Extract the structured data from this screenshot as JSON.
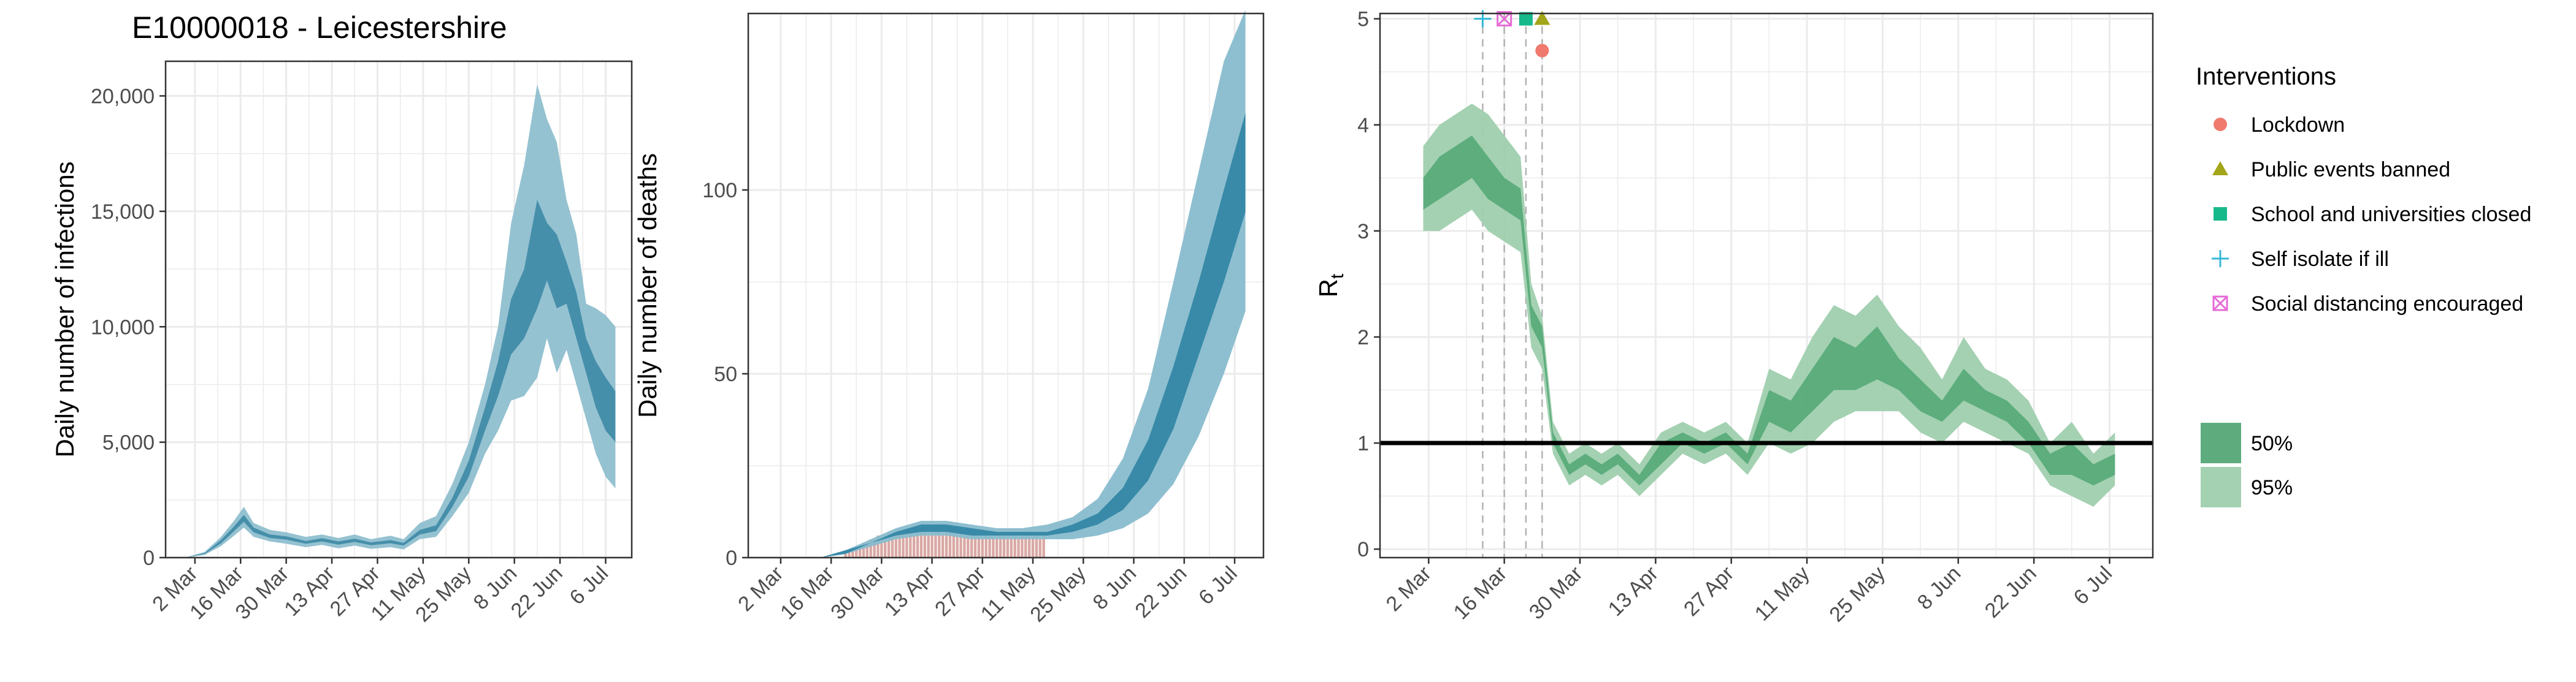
{
  "figure": {
    "title": "E10000018 - Leicestershire"
  },
  "colors": {
    "infection_outer": "#8fbfcf",
    "infection_inner": "#3d8aa6",
    "deaths_outer": "#88bccd",
    "deaths_inner": "#2f84a3",
    "deaths_bars": "#d9a8a4",
    "rt_outer": "#9fcfae",
    "rt_inner": "#55a877",
    "grid": "#ebebeb",
    "lockdown": "#f07a6e",
    "public_events": "#a3a51a",
    "school": "#16b98a",
    "self_isolate": "#34b8d8",
    "social_distancing": "#e66bd6"
  },
  "chart_data": [
    {
      "type": "area",
      "title": "E10000018 - Leicestershire",
      "xlabel": "",
      "ylabel": "Daily number of infections",
      "x_tick_labels": [
        "2 Mar",
        "16 Mar",
        "30 Mar",
        "13 Apr",
        "27 Apr",
        "11 May",
        "25 May",
        "8 Jun",
        "22 Jun",
        "6 Jul"
      ],
      "y_tick_labels": [
        "0",
        "5,000",
        "10,000",
        "15,000",
        "20,000"
      ],
      "y_ticks": [
        0,
        5000,
        10000,
        15000,
        20000
      ],
      "xlim": [
        "2020-02-22",
        "2020-07-14"
      ],
      "ylim": [
        0,
        21500
      ],
      "grid": true,
      "series": [
        {
          "band": "95%",
          "x": [
            "2020-02-28",
            "2020-03-05",
            "2020-03-10",
            "2020-03-14",
            "2020-03-17",
            "2020-03-20",
            "2020-03-25",
            "2020-03-30",
            "2020-04-05",
            "2020-04-10",
            "2020-04-15",
            "2020-04-20",
            "2020-04-25",
            "2020-05-01",
            "2020-05-05",
            "2020-05-10",
            "2020-05-15",
            "2020-05-20",
            "2020-05-25",
            "2020-05-30",
            "2020-06-03",
            "2020-06-07",
            "2020-06-11",
            "2020-06-15",
            "2020-06-18",
            "2020-06-21",
            "2020-06-24",
            "2020-06-27",
            "2020-06-30",
            "2020-07-03",
            "2020-07-06",
            "2020-07-09"
          ],
          "lower": [
            0,
            120,
            500,
            950,
            1300,
            900,
            700,
            600,
            450,
            550,
            400,
            520,
            380,
            450,
            350,
            800,
            900,
            1800,
            2800,
            4500,
            5500,
            6800,
            7000,
            7800,
            9500,
            8000,
            9000,
            7500,
            6000,
            4500,
            3500,
            3000
          ],
          "upper": [
            0,
            250,
            900,
            1600,
            2200,
            1500,
            1200,
            1100,
            900,
            1000,
            850,
            1000,
            800,
            950,
            800,
            1500,
            1800,
            3200,
            5000,
            7500,
            10000,
            14500,
            17000,
            20500,
            19000,
            18000,
            15500,
            14000,
            11000,
            10800,
            10500,
            10000
          ]
        },
        {
          "band": "50%",
          "x": [
            "2020-02-28",
            "2020-03-05",
            "2020-03-10",
            "2020-03-14",
            "2020-03-17",
            "2020-03-20",
            "2020-03-25",
            "2020-03-30",
            "2020-04-05",
            "2020-04-10",
            "2020-04-15",
            "2020-04-20",
            "2020-04-25",
            "2020-05-01",
            "2020-05-05",
            "2020-05-10",
            "2020-05-15",
            "2020-05-20",
            "2020-05-25",
            "2020-05-30",
            "2020-06-03",
            "2020-06-07",
            "2020-06-11",
            "2020-06-15",
            "2020-06-18",
            "2020-06-21",
            "2020-06-24",
            "2020-06-27",
            "2020-06-30",
            "2020-07-03",
            "2020-07-06",
            "2020-07-09"
          ],
          "lower": [
            0,
            160,
            620,
            1150,
            1550,
            1100,
            850,
            780,
            600,
            700,
            560,
            680,
            540,
            620,
            520,
            1000,
            1150,
            2200,
            3500,
            5500,
            7000,
            8800,
            9500,
            10800,
            12000,
            10800,
            11000,
            9500,
            8000,
            6500,
            5500,
            5000
          ],
          "upper": [
            0,
            200,
            760,
            1350,
            1850,
            1300,
            1000,
            920,
            720,
            840,
            700,
            820,
            660,
            760,
            640,
            1200,
            1400,
            2600,
            4200,
            6500,
            8500,
            11200,
            12500,
            15500,
            14500,
            14000,
            12800,
            11500,
            9500,
            8500,
            7800,
            7200
          ]
        }
      ]
    },
    {
      "type": "area",
      "title": "",
      "xlabel": "",
      "ylabel": "Daily number of deaths",
      "x_tick_labels": [
        "2 Mar",
        "16 Mar",
        "30 Mar",
        "13 Apr",
        "27 Apr",
        "11 May",
        "25 May",
        "8 Jun",
        "22 Jun",
        "6 Jul"
      ],
      "y_tick_labels": [
        "0",
        "50",
        "100"
      ],
      "y_ticks": [
        0,
        50,
        100
      ],
      "xlim": [
        "2020-02-22",
        "2020-07-14"
      ],
      "ylim": [
        0,
        148
      ],
      "grid": true,
      "observed_deaths": {
        "x_start": "2020-03-20",
        "x_end": "2020-05-14",
        "values": [
          1,
          2,
          2,
          3,
          3,
          4,
          4,
          5,
          5,
          6,
          5,
          6,
          7,
          6,
          7,
          8,
          7,
          8,
          7,
          6,
          7,
          8,
          7,
          6,
          7,
          8,
          7,
          6,
          7,
          8,
          7,
          6,
          7,
          6,
          7,
          6,
          7,
          6,
          5,
          6,
          7,
          6,
          5,
          6,
          7,
          6,
          5,
          6,
          5,
          6,
          7,
          6,
          5,
          6,
          5,
          6
        ]
      },
      "series": [
        {
          "band": "95%",
          "x": [
            "2020-03-13",
            "2020-03-20",
            "2020-03-27",
            "2020-04-03",
            "2020-04-10",
            "2020-04-17",
            "2020-04-24",
            "2020-05-01",
            "2020-05-08",
            "2020-05-15",
            "2020-05-22",
            "2020-05-29",
            "2020-06-05",
            "2020-06-12",
            "2020-06-19",
            "2020-06-26",
            "2020-07-03",
            "2020-07-09"
          ],
          "lower": [
            0,
            1,
            3,
            5,
            6,
            6,
            5,
            5,
            5,
            5,
            5,
            6,
            8,
            12,
            20,
            33,
            50,
            67
          ],
          "upper": [
            0,
            2,
            5,
            8,
            10,
            10,
            9,
            8,
            8,
            9,
            11,
            16,
            27,
            46,
            75,
            105,
            135,
            149
          ]
        },
        {
          "band": "50%",
          "x": [
            "2020-03-13",
            "2020-03-20",
            "2020-03-27",
            "2020-04-03",
            "2020-04-10",
            "2020-04-17",
            "2020-04-24",
            "2020-05-01",
            "2020-05-08",
            "2020-05-15",
            "2020-05-22",
            "2020-05-29",
            "2020-06-05",
            "2020-06-12",
            "2020-06-19",
            "2020-06-26",
            "2020-07-03",
            "2020-07-09"
          ],
          "lower": [
            0,
            1,
            4,
            6,
            7,
            7,
            6,
            6,
            6,
            6,
            7,
            9,
            13,
            21,
            35,
            55,
            75,
            94
          ],
          "upper": [
            0,
            2,
            4,
            7,
            9,
            9,
            8,
            7,
            7,
            7,
            9,
            12,
            19,
            32,
            52,
            75,
            100,
            121
          ]
        }
      ]
    },
    {
      "type": "area",
      "title": "",
      "xlabel": "",
      "ylabel": "R",
      "ylabel_subscript": "t",
      "x_tick_labels": [
        "2 Mar",
        "16 Mar",
        "30 Mar",
        "13 Apr",
        "27 Apr",
        "11 May",
        "25 May",
        "8 Jun",
        "22 Jun",
        "6 Jul"
      ],
      "y_tick_labels": [
        "0",
        "1",
        "2",
        "3",
        "4",
        "5"
      ],
      "y_ticks": [
        0,
        1,
        2,
        3,
        4,
        5
      ],
      "xlim": [
        "2020-02-22",
        "2020-07-14"
      ],
      "ylim": [
        -0.08,
        5.05
      ],
      "grid": true,
      "reference_line": 1,
      "interventions": [
        {
          "name": "Lockdown",
          "date": "2020-03-23",
          "y": 4.7,
          "shape": "circle",
          "color": "#f07a6e"
        },
        {
          "name": "Public events banned",
          "date": "2020-03-23",
          "y": 5.0,
          "shape": "triangle",
          "color": "#a3a51a"
        },
        {
          "name": "School and universities closed",
          "date": "2020-03-20",
          "y": 5.0,
          "shape": "square",
          "color": "#16b98a"
        },
        {
          "name": "Self isolate if ill",
          "date": "2020-03-12",
          "y": 5.0,
          "shape": "plus",
          "color": "#34b8d8"
        },
        {
          "name": "Social distancing encouraged",
          "date": "2020-03-16",
          "y": 5.0,
          "shape": "boxcross",
          "color": "#e66bd6"
        }
      ],
      "series": [
        {
          "band": "95%",
          "x": [
            "2020-03-01",
            "2020-03-04",
            "2020-03-07",
            "2020-03-10",
            "2020-03-13",
            "2020-03-16",
            "2020-03-19",
            "2020-03-21",
            "2020-03-23",
            "2020-03-25",
            "2020-03-28",
            "2020-03-31",
            "2020-04-03",
            "2020-04-06",
            "2020-04-10",
            "2020-04-14",
            "2020-04-18",
            "2020-04-22",
            "2020-04-26",
            "2020-04-30",
            "2020-05-04",
            "2020-05-08",
            "2020-05-12",
            "2020-05-16",
            "2020-05-20",
            "2020-05-24",
            "2020-05-28",
            "2020-06-01",
            "2020-06-05",
            "2020-06-09",
            "2020-06-13",
            "2020-06-17",
            "2020-06-21",
            "2020-06-25",
            "2020-06-29",
            "2020-07-03",
            "2020-07-07"
          ],
          "lower": [
            3.0,
            3.0,
            3.1,
            3.2,
            3.0,
            2.9,
            2.8,
            1.9,
            1.7,
            0.9,
            0.6,
            0.7,
            0.6,
            0.7,
            0.5,
            0.7,
            0.9,
            0.8,
            0.9,
            0.7,
            1.0,
            0.9,
            1.0,
            1.2,
            1.3,
            1.3,
            1.3,
            1.1,
            1.0,
            1.2,
            1.1,
            1.0,
            0.9,
            0.6,
            0.5,
            0.4,
            0.6
          ],
          "upper": [
            3.8,
            4.0,
            4.1,
            4.2,
            4.1,
            3.9,
            3.7,
            2.5,
            2.2,
            1.2,
            0.9,
            1.0,
            0.9,
            1.0,
            0.8,
            1.1,
            1.2,
            1.1,
            1.2,
            1.0,
            1.7,
            1.6,
            2.0,
            2.3,
            2.2,
            2.4,
            2.1,
            1.9,
            1.6,
            2.0,
            1.7,
            1.6,
            1.4,
            1.0,
            1.2,
            0.9,
            1.1
          ]
        },
        {
          "band": "50%",
          "x": [
            "2020-03-01",
            "2020-03-04",
            "2020-03-07",
            "2020-03-10",
            "2020-03-13",
            "2020-03-16",
            "2020-03-19",
            "2020-03-21",
            "2020-03-23",
            "2020-03-25",
            "2020-03-28",
            "2020-03-31",
            "2020-04-03",
            "2020-04-06",
            "2020-04-10",
            "2020-04-14",
            "2020-04-18",
            "2020-04-22",
            "2020-04-26",
            "2020-04-30",
            "2020-05-04",
            "2020-05-08",
            "2020-05-12",
            "2020-05-16",
            "2020-05-20",
            "2020-05-24",
            "2020-05-28",
            "2020-06-01",
            "2020-06-05",
            "2020-06-09",
            "2020-06-13",
            "2020-06-17",
            "2020-06-21",
            "2020-06-25",
            "2020-06-29",
            "2020-07-03",
            "2020-07-07"
          ],
          "lower": [
            3.2,
            3.3,
            3.4,
            3.5,
            3.3,
            3.2,
            3.1,
            2.1,
            1.9,
            1.0,
            0.7,
            0.8,
            0.7,
            0.8,
            0.6,
            0.8,
            1.0,
            0.9,
            1.0,
            0.8,
            1.2,
            1.1,
            1.3,
            1.5,
            1.5,
            1.6,
            1.5,
            1.3,
            1.2,
            1.4,
            1.3,
            1.2,
            1.0,
            0.7,
            0.7,
            0.6,
            0.7
          ],
          "upper": [
            3.5,
            3.7,
            3.8,
            3.9,
            3.7,
            3.5,
            3.4,
            2.3,
            2.1,
            1.1,
            0.8,
            0.9,
            0.8,
            0.9,
            0.7,
            1.0,
            1.1,
            1.0,
            1.1,
            0.9,
            1.5,
            1.4,
            1.7,
            2.0,
            1.9,
            2.1,
            1.8,
            1.6,
            1.4,
            1.7,
            1.5,
            1.4,
            1.2,
            0.9,
            1.0,
            0.8,
            0.9
          ]
        }
      ]
    }
  ],
  "legend": {
    "title": "Interventions",
    "items": [
      {
        "label": "Lockdown",
        "shape": "circle",
        "color": "#f07a6e"
      },
      {
        "label": "Public events banned",
        "shape": "triangle",
        "color": "#a3a51a"
      },
      {
        "label": "School and universities closed",
        "shape": "square",
        "color": "#16b98a"
      },
      {
        "label": "Self isolate if ill",
        "shape": "plus",
        "color": "#34b8d8"
      },
      {
        "label": "Social distancing encouraged",
        "shape": "boxcross",
        "color": "#e66bd6"
      }
    ],
    "bands": [
      {
        "label": "50%",
        "color": "#55a877"
      },
      {
        "label": "95%",
        "color": "#9fcfae"
      }
    ]
  }
}
